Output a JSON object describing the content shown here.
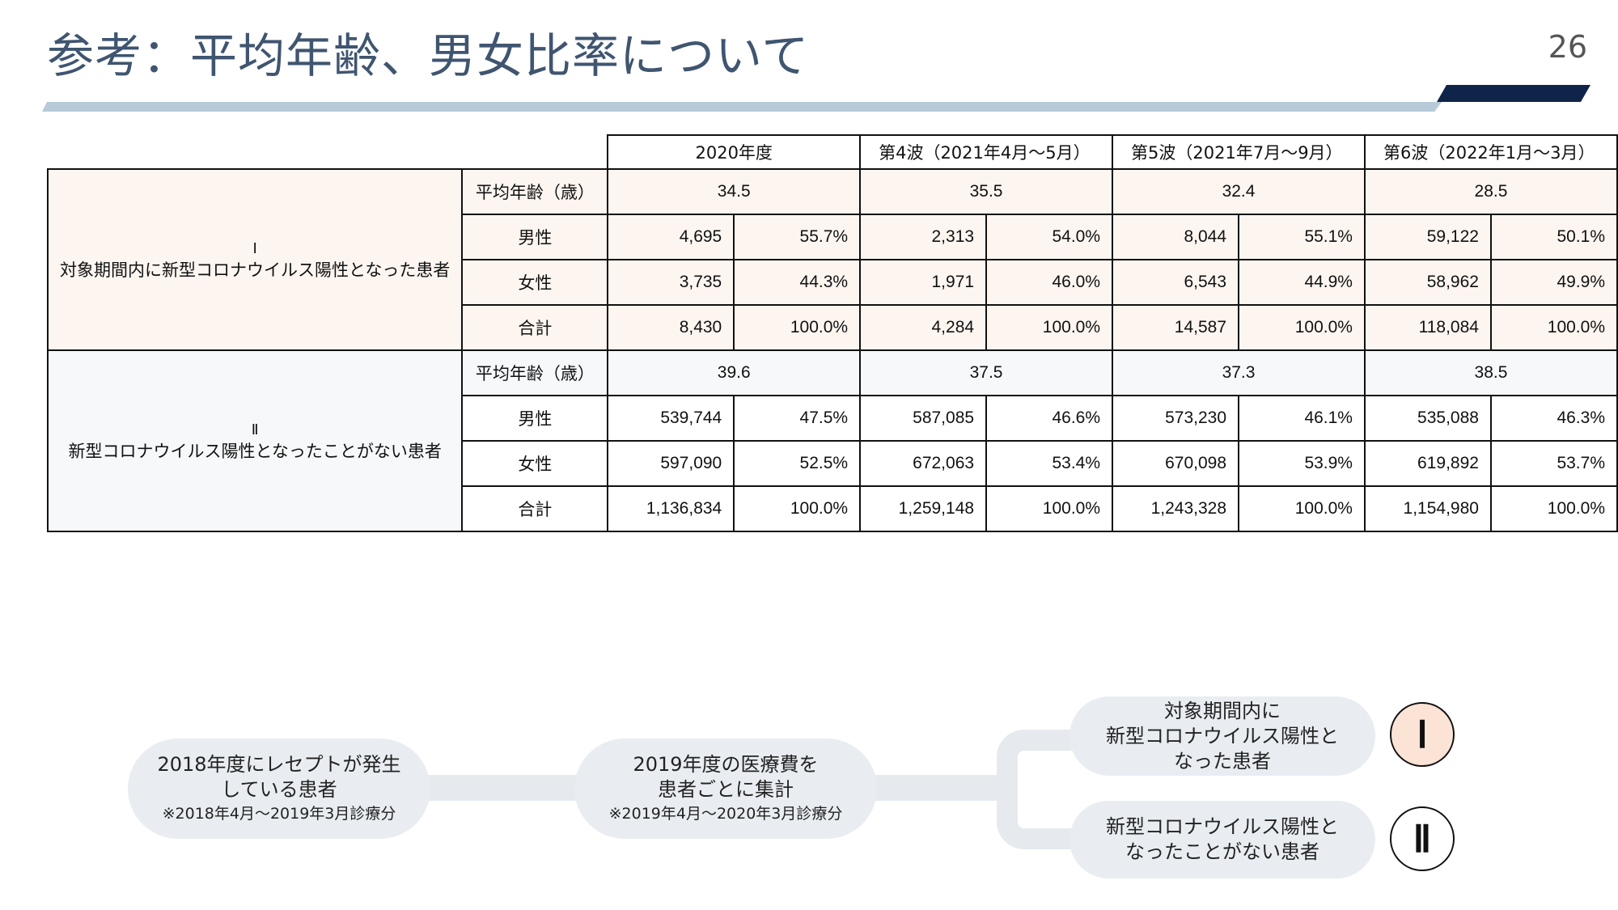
{
  "slide": {
    "title": "参考：平均年齢、男女比率について",
    "page_number": "26"
  },
  "table": {
    "periods": [
      "2020年度",
      "第4波（2021年4月～5月）",
      "第5波（2021年7月～9月）",
      "第6波（2022年1月～3月）"
    ],
    "row_labels": {
      "avg_age": "平均年齢（歳）",
      "male": "男性",
      "female": "女性",
      "total": "合計"
    },
    "groups": [
      {
        "roman": "Ⅰ",
        "label": "対象期間内に新型コロナウイルス陽性となった患者",
        "avg_age": [
          "34.5",
          "35.5",
          "32.4",
          "28.5"
        ],
        "male": [
          [
            "4,695",
            "55.7%"
          ],
          [
            "2,313",
            "54.0%"
          ],
          [
            "8,044",
            "55.1%"
          ],
          [
            "59,122",
            "50.1%"
          ]
        ],
        "female": [
          [
            "3,735",
            "44.3%"
          ],
          [
            "1,971",
            "46.0%"
          ],
          [
            "6,543",
            "44.9%"
          ],
          [
            "58,962",
            "49.9%"
          ]
        ],
        "total": [
          [
            "8,430",
            "100.0%"
          ],
          [
            "4,284",
            "100.0%"
          ],
          [
            "14,587",
            "100.0%"
          ],
          [
            "118,084",
            "100.0%"
          ]
        ]
      },
      {
        "roman": "Ⅱ",
        "label": "新型コロナウイルス陽性となったことがない患者",
        "avg_age": [
          "39.6",
          "37.5",
          "37.3",
          "38.5"
        ],
        "male": [
          [
            "539,744",
            "47.5%"
          ],
          [
            "587,085",
            "46.6%"
          ],
          [
            "573,230",
            "46.1%"
          ],
          [
            "535,088",
            "46.3%"
          ]
        ],
        "female": [
          [
            "597,090",
            "52.5%"
          ],
          [
            "672,063",
            "53.4%"
          ],
          [
            "670,098",
            "53.9%"
          ],
          [
            "619,892",
            "53.7%"
          ]
        ],
        "total": [
          [
            "1,136,834",
            "100.0%"
          ],
          [
            "1,259,148",
            "100.0%"
          ],
          [
            "1,243,328",
            "100.0%"
          ],
          [
            "1,154,980",
            "100.0%"
          ]
        ]
      }
    ]
  },
  "flow": {
    "step1": {
      "line1": "2018年度にレセプトが発生",
      "line2": "している患者",
      "note": "※2018年4月～2019年3月診療分"
    },
    "step2": {
      "line1": "2019年度の医療費を",
      "line2": "患者ごとに集計",
      "note": "※2019年4月～2020年3月診療分"
    },
    "branch1": {
      "line1": "対象期間内に",
      "line2": "新型コロナウイルス陽性と",
      "line3": "なった患者",
      "marker": "Ⅰ"
    },
    "branch2": {
      "line1": "新型コロナウイルス陽性と",
      "line2": "なったことがない患者",
      "marker": "Ⅱ"
    }
  },
  "colors": {
    "title": "#3f5570",
    "header_bar": "#b7cad8",
    "header_accent": "#0e2448",
    "group1_fill": "#fdf5f0",
    "group2_fill": "#f6f8fa",
    "flow_fill": "#e9edf2",
    "marker1_fill": "#fbe3d6"
  }
}
